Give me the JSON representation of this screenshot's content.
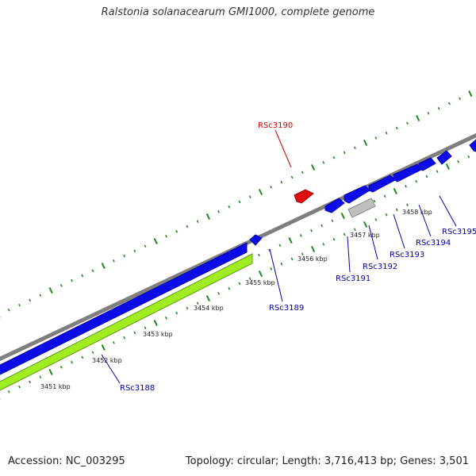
{
  "title": "Ralstonia solanacearum GMI1000, complete genome",
  "footer": {
    "accession": "Accession: NC_003295",
    "summary": "Topology: circular; Length: 3,716,413 bp; Genes: 3,501"
  },
  "colors": {
    "backbone": "#7f7f7f",
    "gene_plus": "#0b0bea",
    "gene_minus": "#e00d0d",
    "gene_other": "#bfbfbf",
    "gene_track_light": "#9fec20",
    "tick": "#1e8a1e",
    "label_plus": "#0000aa",
    "label_minus": "#cc0000"
  },
  "kbp_labels": [
    "3451 kbp",
    "3452 kbp",
    "3453 kbp",
    "3454 kbp",
    "3455 kbp",
    "3456 kbp",
    "3457 kbp",
    "3458 kbp"
  ],
  "genes": [
    {
      "id": "RSc3188",
      "strand": "plus"
    },
    {
      "id": "RSc3189",
      "strand": "plus"
    },
    {
      "id": "RSc3190",
      "strand": "minus"
    },
    {
      "id": "RSc3191",
      "strand": "plus"
    },
    {
      "id": "RSc3192",
      "strand": "other"
    },
    {
      "id": "RSc3193",
      "strand": "plus"
    },
    {
      "id": "RSc3194",
      "strand": "plus"
    },
    {
      "id": "RSc3195",
      "strand": "plus"
    }
  ]
}
